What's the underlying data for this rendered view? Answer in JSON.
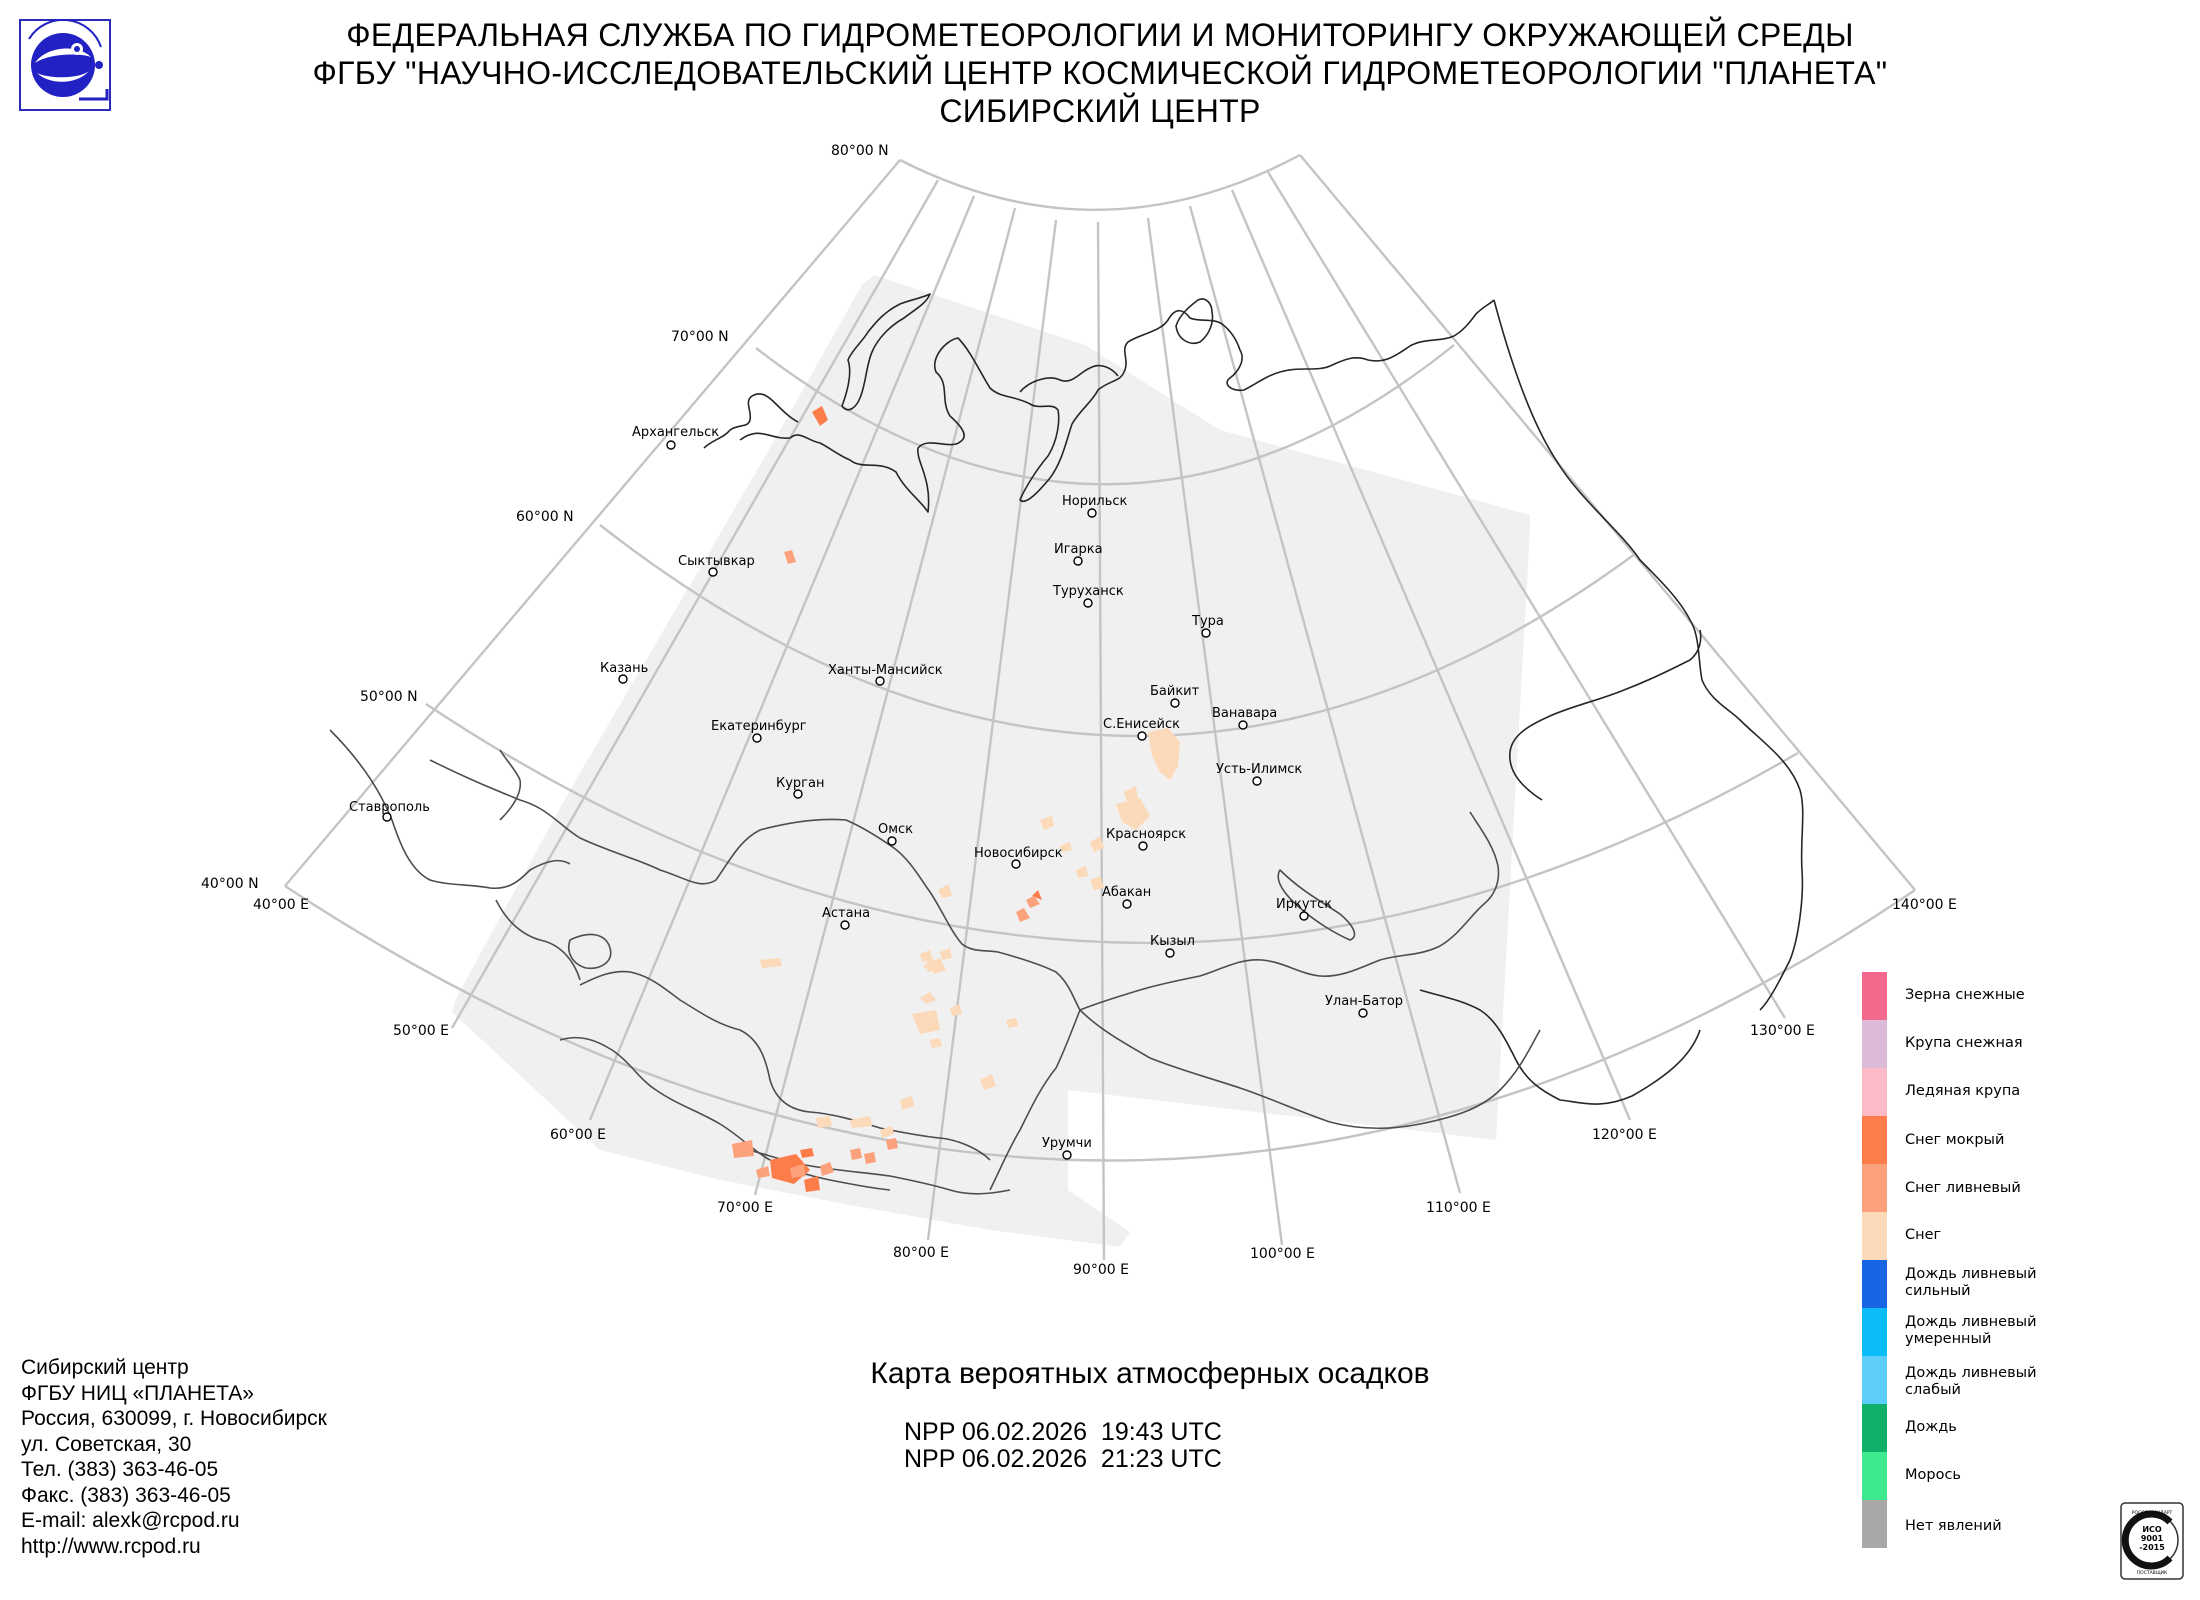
{
  "header": {
    "line1": "ФЕДЕРАЛЬНАЯ СЛУЖБА ПО ГИДРОМЕТЕОРОЛОГИИ И МОНИТОРИНГУ ОКРУЖАЮЩЕЙ СРЕДЫ",
    "line2": "ФГБУ \"НАУЧНО-ИССЛЕДОВАТЕЛЬСКИЙ ЦЕНТР КОСМИЧЕСКОЙ ГИДРОМЕТЕОРОЛОГИИ \"ПЛАНЕТА\"",
    "line3": "СИБИРСКИЙ ЦЕНТР"
  },
  "map": {
    "latitude_labels": [
      "80°00 N",
      "70°00 N",
      "60°00 N",
      "50°00 N",
      "40°00 N"
    ],
    "longitude_labels": [
      "40°00 E",
      "50°00 E",
      "60°00 E",
      "70°00 E",
      "80°00 E",
      "90°00 E",
      "100°00 E",
      "110°00 E",
      "120°00 E",
      "130°00 E",
      "140°00 E"
    ],
    "cities": [
      "Архангельск",
      "Сыктывкар",
      "Казань",
      "Ставрополь",
      "Екатеринбург",
      "Курган",
      "Ханты-Мансийск",
      "Омск",
      "Астана",
      "Новосибирск",
      "Норильск",
      "Игарка",
      "Туруханск",
      "Тура",
      "Байкит",
      "Ванавара",
      "С.Енисейск",
      "Усть-Илимск",
      "Красноярск",
      "Абакан",
      "Кызыл",
      "Иркутск",
      "Улан-Батор",
      "Урумчи"
    ],
    "coverage_color": "#f0f0f0",
    "grid_color": "#c4c4c4",
    "coast_color": "#262626"
  },
  "footer": {
    "lines": [
      "Сибирский центр",
      "ФГБУ НИЦ «ПЛАНЕТА»",
      "Россия, 630099, г. Новосибирск",
      "ул. Советская, 30",
      "Тел. (383) 363-46-05",
      "Факс. (383) 363-46-05",
      "E-mail: alexk@rcpod.ru",
      "http://www.rcpod.ru"
    ]
  },
  "product": {
    "title": "Карта вероятных атмосферных осадков",
    "passes": [
      "NPP 06.02.2026  19:43 UTC",
      "NPP 06.02.2026  21:23 UTC"
    ]
  },
  "legend": [
    {
      "label": "Зерна снежные",
      "color": "#f3698c"
    },
    {
      "label": "Крупа снежная",
      "color": "#dbbbd8"
    },
    {
      "label": "Ледяная крупа",
      "color": "#fbbac6"
    },
    {
      "label": "Снег мокрый",
      "color": "#fd7d4a"
    },
    {
      "label": "Снег ливневый",
      "color": "#fba17b"
    },
    {
      "label": "Снег",
      "color": "#fcdab9"
    },
    {
      "label": "Дождь ливневый сильный",
      "color": "#1a65e3"
    },
    {
      "label": "Дождь ливневый умеренный",
      "color": "#0bbdf6"
    },
    {
      "label": "Дождь ливневый слабый",
      "color": "#5dcdfa"
    },
    {
      "label": "Дождь",
      "color": "#11b068"
    },
    {
      "label": "Морось",
      "color": "#3eea8d"
    },
    {
      "label": "Нет явлений",
      "color": "#a8a8a8"
    }
  ],
  "certification": {
    "text_top": "РОСОССТАНДАРТ",
    "text_mid": "ИСО 9001 -2015",
    "text_bottom": "ПОСТАВЩИК"
  }
}
